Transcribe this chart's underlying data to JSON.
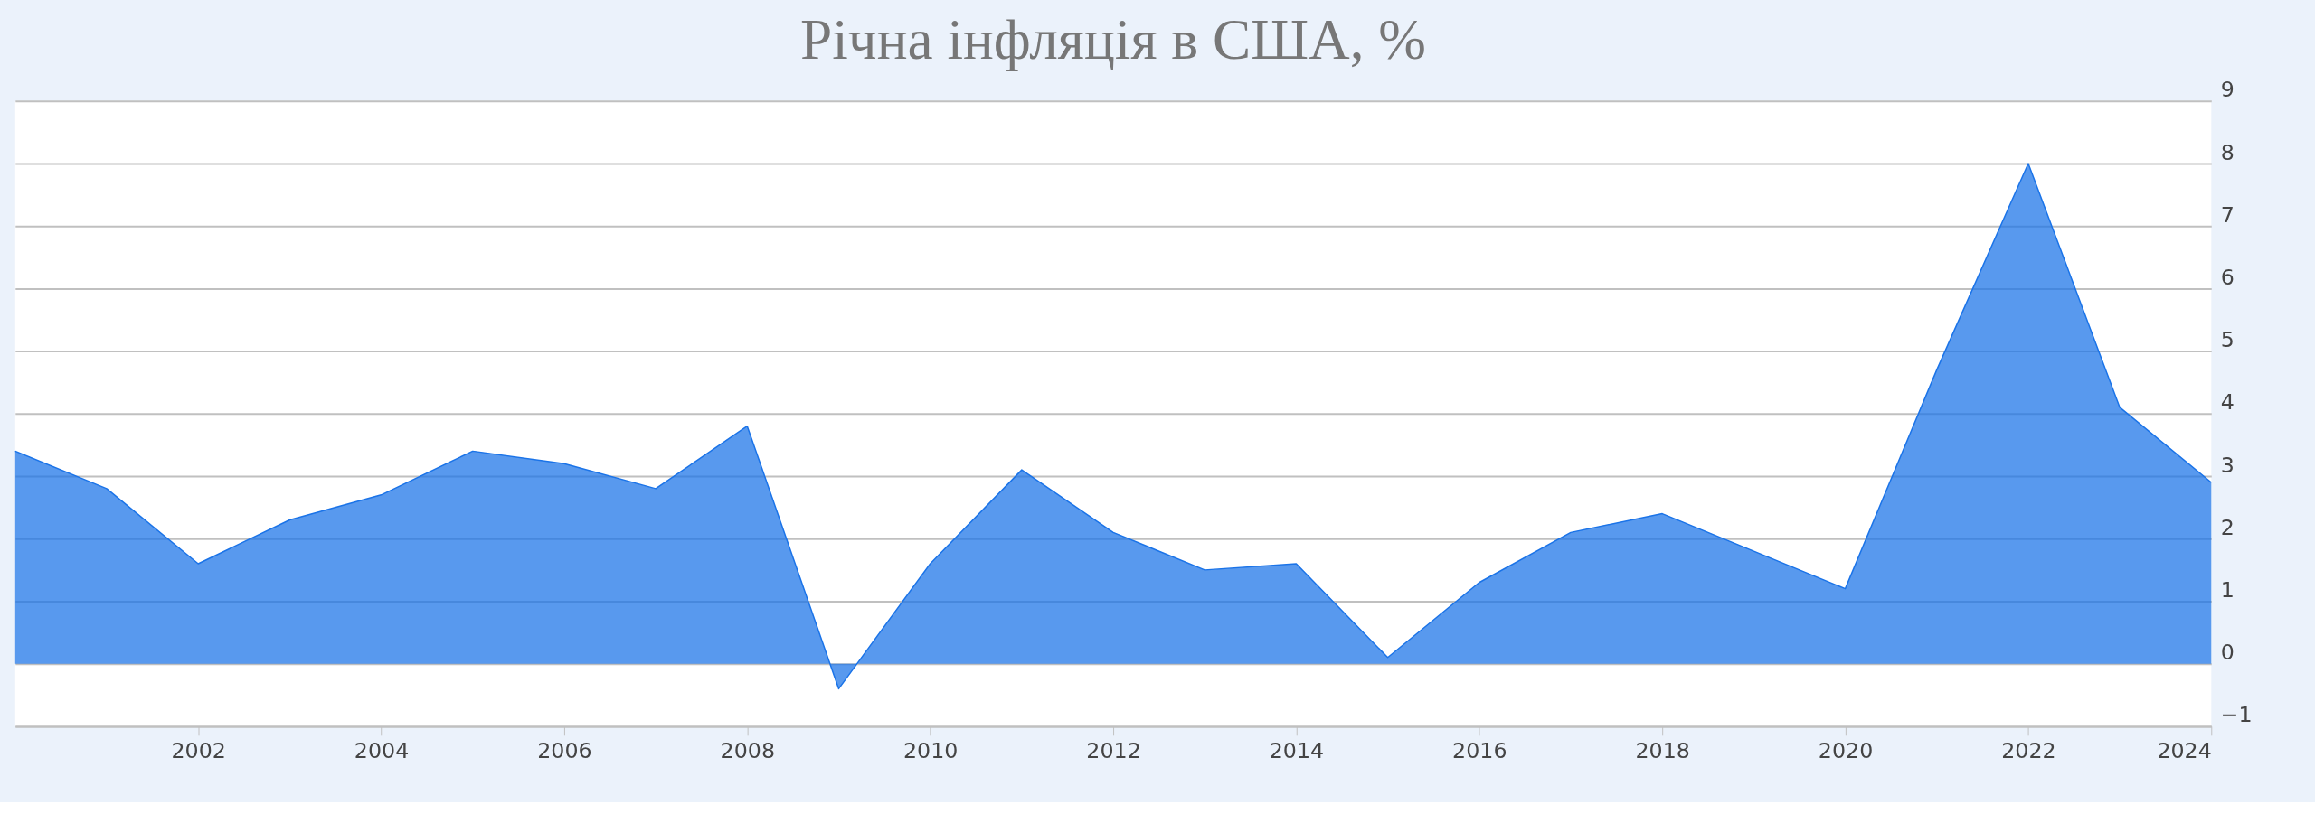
{
  "chart_data": {
    "type": "area",
    "title": "Річна інфляція в США,  %",
    "x": [
      2000,
      2001,
      2002,
      2003,
      2004,
      2005,
      2006,
      2007,
      2008,
      2009,
      2010,
      2011,
      2012,
      2013,
      2014,
      2015,
      2016,
      2017,
      2018,
      2019,
      2020,
      2021,
      2022,
      2023,
      2024
    ],
    "series": [
      {
        "color": "#1a73e8",
        "values": [
          3.4,
          2.8,
          1.6,
          2.3,
          2.7,
          3.4,
          3.2,
          2.8,
          3.8,
          -0.4,
          1.6,
          3.1,
          2.1,
          1.5,
          1.6,
          0.1,
          1.3,
          2.1,
          2.4,
          1.8,
          1.2,
          4.7,
          8.0,
          4.1,
          2.9
        ]
      }
    ],
    "xlim": [
      2000,
      2024
    ],
    "xticks": [
      2002,
      2004,
      2006,
      2008,
      2010,
      2012,
      2014,
      2016,
      2018,
      2020,
      2022,
      2024
    ],
    "ylim": [
      -1,
      9
    ],
    "yticks": [
      -1,
      0,
      1,
      2,
      3,
      4,
      5,
      6,
      7,
      8,
      9
    ],
    "grid": "y",
    "marker": "none",
    "line_style": "solid"
  }
}
